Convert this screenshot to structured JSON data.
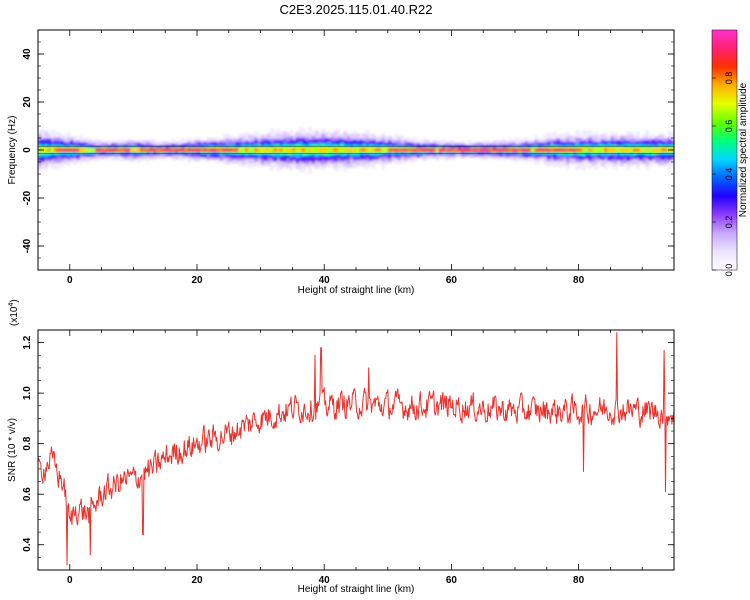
{
  "title": "C2E3.2025.115.01.40.R22",
  "chart_data": [
    {
      "type": "heatmap",
      "xlabel": "Height of straight line (km)",
      "ylabel": "Frequency (Hz)",
      "xlim": [
        -5,
        95
      ],
      "ylim": [
        -50,
        50
      ],
      "xticks": [
        0,
        20,
        40,
        60,
        80
      ],
      "yticks": [
        -40,
        -20,
        0,
        20,
        40
      ],
      "band_center_hz": 0,
      "band_halfwidth_hz": [
        {
          "x": -5,
          "w": 3.5
        },
        {
          "x": 0,
          "w": 2.5
        },
        {
          "x": 5,
          "w": 1.5
        },
        {
          "x": 10,
          "w": 2.0
        },
        {
          "x": 15,
          "w": 1.5
        },
        {
          "x": 20,
          "w": 2.0
        },
        {
          "x": 25,
          "w": 2.5
        },
        {
          "x": 30,
          "w": 3.0
        },
        {
          "x": 35,
          "w": 3.5
        },
        {
          "x": 40,
          "w": 3.5
        },
        {
          "x": 45,
          "w": 3.0
        },
        {
          "x": 50,
          "w": 2.5
        },
        {
          "x": 55,
          "w": 1.8
        },
        {
          "x": 60,
          "w": 1.5
        },
        {
          "x": 65,
          "w": 1.5
        },
        {
          "x": 70,
          "w": 1.8
        },
        {
          "x": 75,
          "w": 2.5
        },
        {
          "x": 80,
          "w": 3.0
        },
        {
          "x": 85,
          "w": 3.0
        },
        {
          "x": 90,
          "w": 3.0
        },
        {
          "x": 95,
          "w": 3.0
        }
      ],
      "peak_segments_km": [
        [
          -2,
          1
        ],
        [
          4,
          9
        ],
        [
          11,
          23
        ],
        [
          24,
          26
        ],
        [
          50,
          57
        ],
        [
          58,
          72
        ],
        [
          73,
          80
        ]
      ],
      "colorbar": {
        "label": "Normalized spectral amplitude",
        "range": [
          0,
          1
        ],
        "ticks": [
          0.0,
          0.2,
          0.4,
          0.6,
          0.8
        ],
        "colors": [
          "#ffffff",
          "#ece3ff",
          "#c7a8ff",
          "#8d3cff",
          "#2200ff",
          "#0066ff",
          "#00d8ff",
          "#00ff7a",
          "#66ff00",
          "#e6ff00",
          "#ffb000",
          "#ff3000",
          "#ff2070",
          "#ff33cc"
        ]
      }
    },
    {
      "type": "line",
      "xlabel": "Height of straight line (km)",
      "ylabel": "SNR (10 * v/v)",
      "y_multiplier": "(x10",
      "y_multiplier_exp": "4",
      "y_multiplier_close": ")",
      "xlim": [
        -5,
        95
      ],
      "ylim": [
        0.3,
        1.25
      ],
      "xticks": [
        0,
        20,
        40,
        60,
        80
      ],
      "yticks": [
        0.4,
        0.6,
        0.8,
        1.0,
        1.2
      ],
      "color": "#e8322d",
      "trend": [
        {
          "x": -5,
          "y": 0.68
        },
        {
          "x": -3,
          "y": 0.74
        },
        {
          "x": -1,
          "y": 0.64
        },
        {
          "x": 0,
          "y": 0.48
        },
        {
          "x": 1,
          "y": 0.55
        },
        {
          "x": 3,
          "y": 0.52
        },
        {
          "x": 5,
          "y": 0.6
        },
        {
          "x": 8,
          "y": 0.65
        },
        {
          "x": 10,
          "y": 0.66
        },
        {
          "x": 13,
          "y": 0.7
        },
        {
          "x": 16,
          "y": 0.76
        },
        {
          "x": 20,
          "y": 0.8
        },
        {
          "x": 25,
          "y": 0.84
        },
        {
          "x": 30,
          "y": 0.9
        },
        {
          "x": 35,
          "y": 0.94
        },
        {
          "x": 40,
          "y": 0.95
        },
        {
          "x": 45,
          "y": 0.96
        },
        {
          "x": 50,
          "y": 0.95
        },
        {
          "x": 55,
          "y": 0.95
        },
        {
          "x": 60,
          "y": 0.95
        },
        {
          "x": 65,
          "y": 0.94
        },
        {
          "x": 70,
          "y": 0.93
        },
        {
          "x": 75,
          "y": 0.93
        },
        {
          "x": 80,
          "y": 0.93
        },
        {
          "x": 85,
          "y": 0.94
        },
        {
          "x": 90,
          "y": 0.93
        },
        {
          "x": 95,
          "y": 0.92
        }
      ],
      "noise_amplitude": 0.085,
      "spikes": [
        {
          "x": -0.4,
          "y": 0.32
        },
        {
          "x": 3.2,
          "y": 0.36
        },
        {
          "x": 11.5,
          "y": 0.44
        },
        {
          "x": 39.5,
          "y": 1.18
        },
        {
          "x": 38.6,
          "y": 1.15
        },
        {
          "x": 47.0,
          "y": 1.1
        },
        {
          "x": 86.0,
          "y": 1.24
        },
        {
          "x": 93.7,
          "y": 0.61
        },
        {
          "x": 93.4,
          "y": 1.17
        },
        {
          "x": 80.8,
          "y": 0.69
        }
      ]
    }
  ]
}
